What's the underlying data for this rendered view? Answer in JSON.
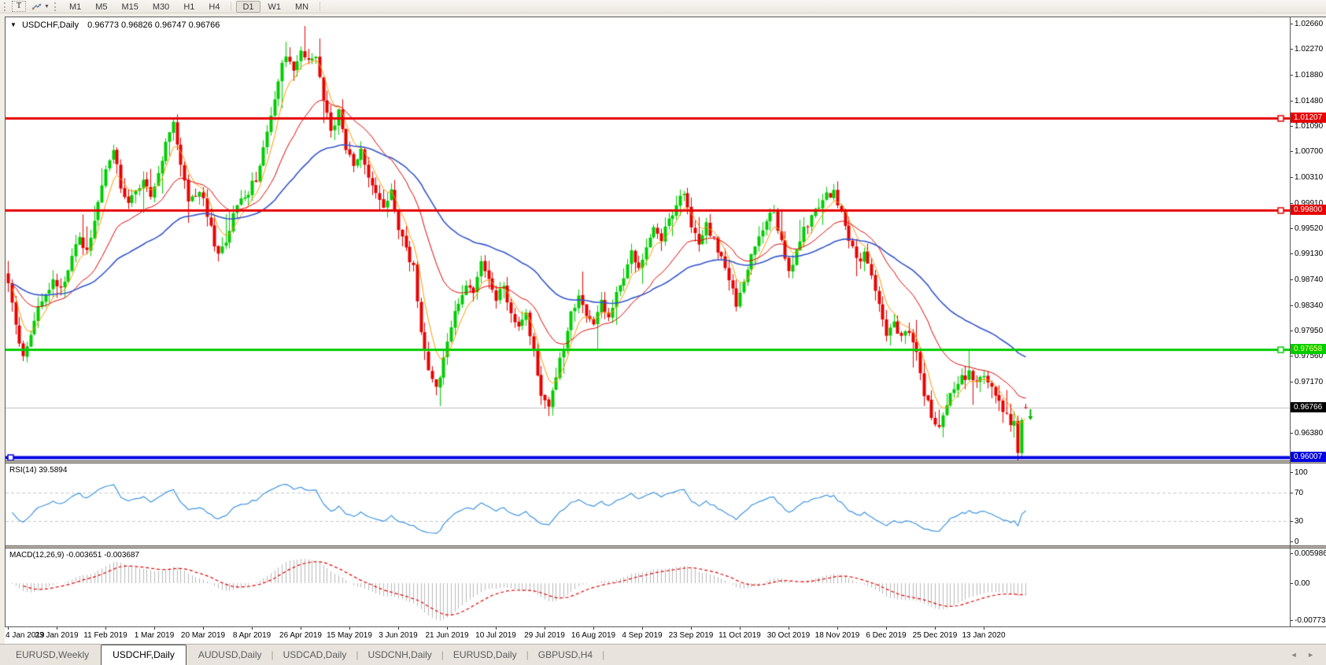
{
  "toolbar": {
    "text_tool_label": "T",
    "dropdown_glyph": "▼",
    "timeframes": [
      "M1",
      "M5",
      "M15",
      "M30",
      "H1",
      "H4",
      "D1",
      "W1",
      "MN"
    ],
    "active_timeframe": "D1"
  },
  "chart_header": {
    "collapse_glyph": "▼",
    "symbol_period": "USDCHF,Daily",
    "quotes": "0.96773 0.96826 0.96747 0.96766"
  },
  "price_axis": {
    "ticks": [
      "1.02660",
      "1.02270",
      "1.01880",
      "1.01480",
      "1.01090",
      "1.00700",
      "1.00310",
      "0.99910",
      "0.99520",
      "0.99130",
      "0.98740",
      "0.98340",
      "0.97950",
      "0.97560",
      "0.97170",
      "0.96380"
    ],
    "current_price": {
      "label": "0.96766",
      "value": 0.96766,
      "bg": "#000000",
      "fg": "#ffffff"
    }
  },
  "hlines": [
    {
      "label": "1.01207",
      "price": 1.01207,
      "color": "#e60000",
      "text_color": "#ffffff",
      "width": 3,
      "handle": "right"
    },
    {
      "label": "0.99800",
      "price": 0.998,
      "color": "#e60000",
      "text_color": "#ffffff",
      "width": 3,
      "handle": "right"
    },
    {
      "label": "0.97658",
      "price": 0.97658,
      "color": "#00cc00",
      "text_color": "#ffff80",
      "width": 3,
      "handle": "right"
    },
    {
      "label": "0.96007",
      "price": 0.96007,
      "color": "#0000e0",
      "text_color": "#ffffff",
      "width": 4,
      "handle": "left"
    }
  ],
  "rsi_pane": {
    "label": "RSI(14) 39.5894",
    "period": 14,
    "value": 39.5894,
    "levels": [
      "100",
      "70",
      "30",
      "0"
    ],
    "level_values": [
      100,
      70,
      30,
      0
    ],
    "dashed_levels": [
      70,
      30
    ],
    "line_color": "#3f95e0"
  },
  "macd_pane": {
    "label": "MACD(12,26,9) -0.003651 -0.003687",
    "fast": 12,
    "slow": 26,
    "signal": 9,
    "main_value": -0.003651,
    "signal_value": -0.003687,
    "axis_labels": [
      "0.005986",
      "0.00",
      "-0.007737"
    ],
    "axis_values": [
      0.005986,
      0,
      -0.007737
    ],
    "hist_color": "#b8b8b8",
    "signal_color": "#e60000"
  },
  "tabs": {
    "separator": "|",
    "items": [
      {
        "label": "EURUSD,Weekly",
        "active": false
      },
      {
        "label": "USDCHF,Daily",
        "active": true
      },
      {
        "label": "AUDUSD,Daily",
        "active": false
      },
      {
        "label": "USDCAD,Daily",
        "active": false
      },
      {
        "label": "USDCNH,Daily",
        "active": false
      },
      {
        "label": "EURUSD,Daily",
        "active": false
      },
      {
        "label": "GBPUSD,H4",
        "active": false
      }
    ]
  },
  "tab_scroll": {
    "left_glyph": "◄",
    "right_glyph": "►"
  },
  "chart_data": {
    "type": "candlestick",
    "symbol": "USDCHF",
    "period": "Daily",
    "open": 0.96773,
    "high": 0.96826,
    "low": 0.96747,
    "close": 0.96766,
    "price_axis_range": [
      0.9596,
      1.0272
    ],
    "candle_up_color": "#00cc00",
    "candle_down_color": "#e80000",
    "current_price_line_color": "#c0c0c0",
    "horizontal_levels": [
      1.01207,
      0.998,
      0.97658,
      0.96007
    ],
    "date_ticks": [
      "4 Jan 2019",
      "23 Jan 2019",
      "11 Feb 2019",
      "1 Mar 2019",
      "20 Mar 2019",
      "8 Apr 2019",
      "26 Apr 2019",
      "15 May 2019",
      "3 Jun 2019",
      "21 Jun 2019",
      "10 Jul 2019",
      "29 Jul 2019",
      "16 Aug 2019",
      "4 Sep 2019",
      "23 Sep 2019",
      "11 Oct 2019",
      "30 Oct 2019",
      "18 Nov 2019",
      "6 Dec 2019",
      "25 Dec 2019",
      "13 Jan 2020"
    ],
    "days_per_date_tick": 13,
    "total_days": 272,
    "moving_averages": [
      {
        "period": 6,
        "color": "#ff9900",
        "width": 1
      },
      {
        "period": 22,
        "color": "#e00000",
        "width": 1
      },
      {
        "period": 55,
        "color": "#3355cc",
        "width": 1.6
      }
    ],
    "close_anchors": [
      [
        0,
        0.9865
      ],
      [
        2,
        0.98
      ],
      [
        4,
        0.9757
      ],
      [
        6,
        0.9792
      ],
      [
        9,
        0.9845
      ],
      [
        12,
        0.9872
      ],
      [
        14,
        0.9858
      ],
      [
        17,
        0.9906
      ],
      [
        19,
        0.9938
      ],
      [
        21,
        0.9918
      ],
      [
        24,
        0.9986
      ],
      [
        26,
        1.0042
      ],
      [
        28,
        1.0076
      ],
      [
        30,
        1.0018
      ],
      [
        32,
        0.9986
      ],
      [
        34,
        1.0006
      ],
      [
        36,
        1.0028
      ],
      [
        38,
        0.9996
      ],
      [
        40,
        1.0036
      ],
      [
        42,
        1.0086
      ],
      [
        44,
        1.0112
      ],
      [
        46,
        1.0048
      ],
      [
        48,
        0.9992
      ],
      [
        50,
        1.0006
      ],
      [
        52,
        0.9996
      ],
      [
        54,
        0.995
      ],
      [
        56,
        0.9908
      ],
      [
        58,
        0.9928
      ],
      [
        60,
        0.9976
      ],
      [
        62,
        0.9992
      ],
      [
        64,
        1.0006
      ],
      [
        66,
        1.003
      ],
      [
        68,
        1.0074
      ],
      [
        70,
        1.0126
      ],
      [
        72,
        1.0182
      ],
      [
        74,
        1.0222
      ],
      [
        76,
        1.019
      ],
      [
        78,
        1.0226
      ],
      [
        80,
        1.0206
      ],
      [
        82,
        1.0212
      ],
      [
        84,
        1.0148
      ],
      [
        86,
        1.0104
      ],
      [
        88,
        1.0128
      ],
      [
        90,
        1.0078
      ],
      [
        92,
        1.0052
      ],
      [
        94,
        1.0072
      ],
      [
        96,
        1.0028
      ],
      [
        98,
        1.0
      ],
      [
        100,
        0.9988
      ],
      [
        102,
        1.0006
      ],
      [
        104,
        0.995
      ],
      [
        106,
        0.9918
      ],
      [
        108,
        0.9894
      ],
      [
        110,
        0.9788
      ],
      [
        112,
        0.9738
      ],
      [
        114,
        0.9702
      ],
      [
        116,
        0.9748
      ],
      [
        118,
        0.9802
      ],
      [
        120,
        0.9842
      ],
      [
        122,
        0.9868
      ],
      [
        124,
        0.9858
      ],
      [
        126,
        0.9902
      ],
      [
        128,
        0.9868
      ],
      [
        130,
        0.9846
      ],
      [
        132,
        0.9862
      ],
      [
        134,
        0.9828
      ],
      [
        136,
        0.9798
      ],
      [
        138,
        0.9824
      ],
      [
        140,
        0.9758
      ],
      [
        142,
        0.9698
      ],
      [
        144,
        0.9684
      ],
      [
        146,
        0.9722
      ],
      [
        148,
        0.9772
      ],
      [
        150,
        0.9822
      ],
      [
        152,
        0.9842
      ],
      [
        154,
        0.9822
      ],
      [
        156,
        0.9806
      ],
      [
        158,
        0.984
      ],
      [
        160,
        0.982
      ],
      [
        162,
        0.985
      ],
      [
        164,
        0.9882
      ],
      [
        166,
        0.9912
      ],
      [
        168,
        0.9894
      ],
      [
        170,
        0.9926
      ],
      [
        172,
        0.9952
      ],
      [
        174,
        0.993
      ],
      [
        176,
        0.9966
      ],
      [
        178,
        0.9986
      ],
      [
        180,
        1.0006
      ],
      [
        182,
        0.995
      ],
      [
        184,
        0.993
      ],
      [
        186,
        0.9958
      ],
      [
        188,
        0.9936
      ],
      [
        190,
        0.9904
      ],
      [
        192,
        0.9868
      ],
      [
        194,
        0.9838
      ],
      [
        196,
        0.9866
      ],
      [
        198,
        0.9906
      ],
      [
        200,
        0.9942
      ],
      [
        202,
        0.9962
      ],
      [
        204,
        0.9976
      ],
      [
        206,
        0.9934
      ],
      [
        208,
        0.9888
      ],
      [
        210,
        0.9916
      ],
      [
        212,
        0.9952
      ],
      [
        214,
        0.9968
      ],
      [
        216,
        0.9986
      ],
      [
        218,
        1.0002
      ],
      [
        220,
        1.001
      ],
      [
        222,
        0.9974
      ],
      [
        224,
        0.9938
      ],
      [
        226,
        0.9904
      ],
      [
        228,
        0.9912
      ],
      [
        230,
        0.988
      ],
      [
        232,
        0.9834
      ],
      [
        234,
        0.979
      ],
      [
        236,
        0.9802
      ],
      [
        238,
        0.978
      ],
      [
        240,
        0.9796
      ],
      [
        242,
        0.9756
      ],
      [
        244,
        0.97
      ],
      [
        246,
        0.9664
      ],
      [
        248,
        0.9646
      ],
      [
        250,
        0.9682
      ],
      [
        252,
        0.9706
      ],
      [
        254,
        0.9722
      ],
      [
        256,
        0.973
      ],
      [
        258,
        0.9712
      ],
      [
        260,
        0.9726
      ],
      [
        262,
        0.9708
      ],
      [
        264,
        0.9688
      ],
      [
        266,
        0.9662
      ],
      [
        268,
        0.965
      ],
      [
        269,
        0.9612
      ],
      [
        270,
        0.9656
      ],
      [
        271,
        0.96766
      ]
    ]
  }
}
